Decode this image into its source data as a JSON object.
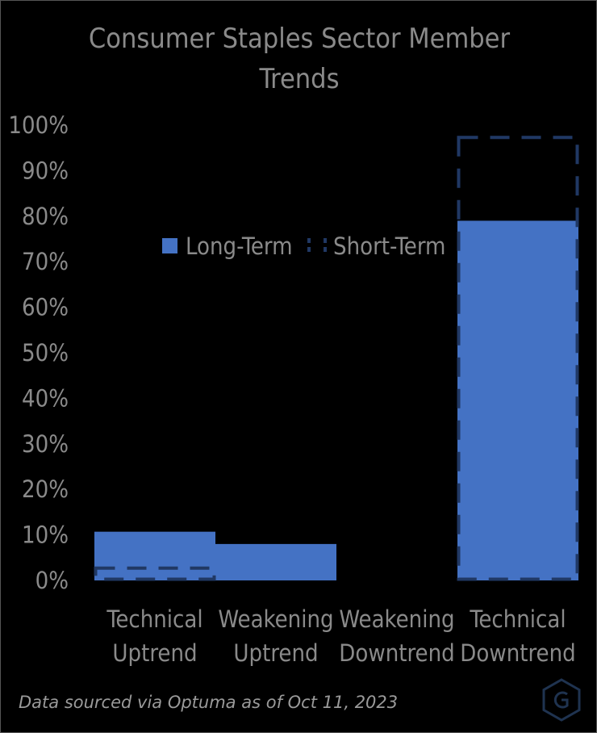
{
  "chart_data": {
    "type": "bar",
    "title": "Consumer Staples Sector Member Trends",
    "categories": [
      "Technical Uptrend",
      "Weakening Uptrend",
      "Weakening Downtrend",
      "Technical Downtrend"
    ],
    "category_lines": [
      [
        "Technical",
        "Uptrend"
      ],
      [
        "Weakening",
        "Uptrend"
      ],
      [
        "Weakening",
        "Downtrend"
      ],
      [
        "Technical",
        "Downtrend"
      ]
    ],
    "series": [
      {
        "name": "Long-Term",
        "style": "filled",
        "color": "#4472C4",
        "values": [
          0.107,
          0.08,
          0.0,
          0.79
        ]
      },
      {
        "name": "Short-Term",
        "style": "dashed-outline",
        "color": "#203864",
        "values": [
          0.027,
          0.0,
          0.0,
          0.973
        ]
      }
    ],
    "xlabel": "",
    "ylabel": "",
    "ylim": [
      0,
      1
    ],
    "yticks": [
      "0%",
      "10%",
      "20%",
      "30%",
      "40%",
      "50%",
      "60%",
      "70%",
      "80%",
      "90%",
      "100%"
    ],
    "grid": false,
    "legend_position": "upper-center overlapping plot"
  },
  "source_note": "Data sourced via Optuma as of Oct 11, 2023",
  "logo_icon": "hexagon-g-logo-icon",
  "colors": {
    "background": "#000000",
    "text": "#8a8a8a",
    "long_term": "#4472C4",
    "short_term": "#203864"
  }
}
